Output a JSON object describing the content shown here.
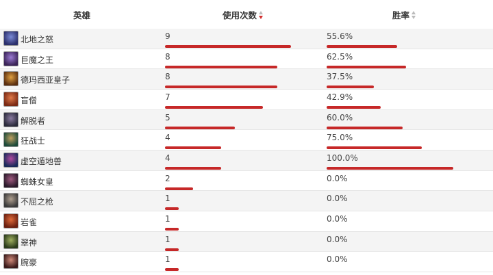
{
  "header": {
    "hero": "英雄",
    "uses": "使用次数",
    "winrate": "胜率"
  },
  "colors": {
    "bar": "#c62828",
    "sort_active": "#d32f2f"
  },
  "max_uses": 9,
  "rows": [
    {
      "name": "北地之怒",
      "uses": "9",
      "winrate": "55.6%",
      "uses_value": 9,
      "winrate_value": 55.6,
      "avatar_colors": [
        "#2b2f6b",
        "#7a8ad6"
      ]
    },
    {
      "name": "巨魔之王",
      "uses": "8",
      "winrate": "62.5%",
      "uses_value": 8,
      "winrate_value": 62.5,
      "avatar_colors": [
        "#3b2457",
        "#9b7bd4"
      ]
    },
    {
      "name": "德玛西亚皇子",
      "uses": "8",
      "winrate": "37.5%",
      "uses_value": 8,
      "winrate_value": 37.5,
      "avatar_colors": [
        "#5a2e0f",
        "#e0a040"
      ]
    },
    {
      "name": "盲僧",
      "uses": "7",
      "winrate": "42.9%",
      "uses_value": 7,
      "winrate_value": 42.9,
      "avatar_colors": [
        "#7a2a14",
        "#e07a4a"
      ]
    },
    {
      "name": "解脱者",
      "uses": "5",
      "winrate": "60.0%",
      "uses_value": 5,
      "winrate_value": 60.0,
      "avatar_colors": [
        "#2a2a3a",
        "#8a7aa0"
      ]
    },
    {
      "name": "狂战士",
      "uses": "4",
      "winrate": "75.0%",
      "uses_value": 4,
      "winrate_value": 75.0,
      "avatar_colors": [
        "#1d4a3a",
        "#c0a060"
      ]
    },
    {
      "name": "虚空遁地兽",
      "uses": "4",
      "winrate": "100.0%",
      "uses_value": 4,
      "winrate_value": 100.0,
      "avatar_colors": [
        "#1a2a5a",
        "#b04aa0"
      ]
    },
    {
      "name": "蜘蛛女皇",
      "uses": "2",
      "winrate": "0.0%",
      "uses_value": 2,
      "winrate_value": 0,
      "avatar_colors": [
        "#2a1a2a",
        "#a05a80"
      ]
    },
    {
      "name": "不屈之枪",
      "uses": "1",
      "winrate": "0.0%",
      "uses_value": 1,
      "winrate_value": 0,
      "avatar_colors": [
        "#3a3a3a",
        "#b0a090"
      ]
    },
    {
      "name": "岩雀",
      "uses": "1",
      "winrate": "0.0%",
      "uses_value": 1,
      "winrate_value": 0,
      "avatar_colors": [
        "#6a2010",
        "#e06a3a"
      ]
    },
    {
      "name": "翠神",
      "uses": "1",
      "winrate": "0.0%",
      "uses_value": 1,
      "winrate_value": 0,
      "avatar_colors": [
        "#2a3a1a",
        "#a0b060"
      ]
    },
    {
      "name": "腕豪",
      "uses": "1",
      "winrate": "0.0%",
      "uses_value": 1,
      "winrate_value": 0,
      "avatar_colors": [
        "#3a1a1a",
        "#d08a7a"
      ]
    }
  ]
}
